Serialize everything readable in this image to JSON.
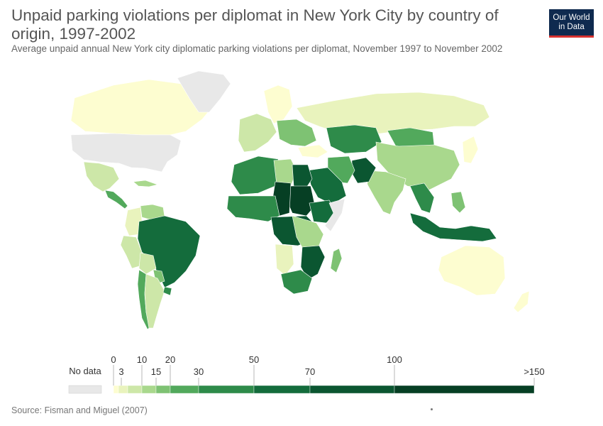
{
  "header": {
    "title": "Unpaid parking violations per diplomat in New York City by country of origin, 1997-2002",
    "subtitle": "Average unpaid annual New York city diplomatic parking violations per diplomat, November 1997 to November 2002"
  },
  "logo": {
    "line1": "Our World",
    "line2": "in Data"
  },
  "footer": {
    "source_label": "Source:",
    "source_text": "Fisman and Miguel (2007)"
  },
  "colors": {
    "no_data": "#e8e8e8",
    "border": "#ffffff",
    "bins": [
      "#fdfdd0",
      "#e9f3bd",
      "#cde7a8",
      "#a9d88d",
      "#7ec273",
      "#52a95c",
      "#2e8b4a",
      "#146c3c",
      "#0b5631",
      "#063f24"
    ]
  },
  "legend": {
    "no_data_label": "No data",
    "ticks_top": [
      "0",
      "10",
      "20",
      "50",
      "100"
    ],
    "ticks_bottom": [
      "3",
      "15",
      "30",
      "70",
      ">150"
    ],
    "breaks": [
      0,
      3,
      10,
      15,
      20,
      30,
      50,
      70,
      100,
      150
    ]
  },
  "map_data": {
    "regions": [
      {
        "name": "Canada",
        "bin": 0
      },
      {
        "name": "Greenland",
        "bin": -1
      },
      {
        "name": "United States",
        "bin": -1
      },
      {
        "name": "Mexico",
        "bin": 2
      },
      {
        "name": "Central America",
        "bin": 5
      },
      {
        "name": "Cuba",
        "bin": 3
      },
      {
        "name": "Venezuela",
        "bin": 3
      },
      {
        "name": "Colombia",
        "bin": 1
      },
      {
        "name": "Peru",
        "bin": 2
      },
      {
        "name": "Brazil",
        "bin": 7
      },
      {
        "name": "Bolivia",
        "bin": 2
      },
      {
        "name": "Paraguay",
        "bin": 4
      },
      {
        "name": "Chile",
        "bin": 5
      },
      {
        "name": "Argentina",
        "bin": 2
      },
      {
        "name": "Uruguay",
        "bin": 6
      },
      {
        "name": "Russia",
        "bin": 1
      },
      {
        "name": "Scandinavia",
        "bin": 0
      },
      {
        "name": "Western Europe",
        "bin": 2
      },
      {
        "name": "Eastern Europe",
        "bin": 4
      },
      {
        "name": "Turkey",
        "bin": 0
      },
      {
        "name": "Kazakhstan",
        "bin": 6
      },
      {
        "name": "Mongolia",
        "bin": 5
      },
      {
        "name": "China",
        "bin": 3
      },
      {
        "name": "India",
        "bin": 3
      },
      {
        "name": "Pakistan",
        "bin": 8
      },
      {
        "name": "Iran",
        "bin": 5
      },
      {
        "name": "Saudi Arabia",
        "bin": 7
      },
      {
        "name": "Northwest Africa",
        "bin": 6
      },
      {
        "name": "Libya",
        "bin": 3
      },
      {
        "name": "Egypt",
        "bin": 8
      },
      {
        "name": "Sudan",
        "bin": 9
      },
      {
        "name": "Chad",
        "bin": 9
      },
      {
        "name": "West Africa",
        "bin": 6
      },
      {
        "name": "Ethiopia",
        "bin": 7
      },
      {
        "name": "Somalia",
        "bin": -1
      },
      {
        "name": "Central Africa",
        "bin": 8
      },
      {
        "name": "East Africa",
        "bin": 3
      },
      {
        "name": "Angola",
        "bin": 1
      },
      {
        "name": "Mozambique",
        "bin": 8
      },
      {
        "name": "South Africa",
        "bin": 6
      },
      {
        "name": "Madagascar",
        "bin": 4
      },
      {
        "name": "Southeast Asia",
        "bin": 6
      },
      {
        "name": "Indonesia",
        "bin": 7
      },
      {
        "name": "Philippines",
        "bin": 4
      },
      {
        "name": "Japan",
        "bin": 0
      },
      {
        "name": "Australia",
        "bin": 0
      },
      {
        "name": "New Zealand",
        "bin": 0
      }
    ]
  }
}
